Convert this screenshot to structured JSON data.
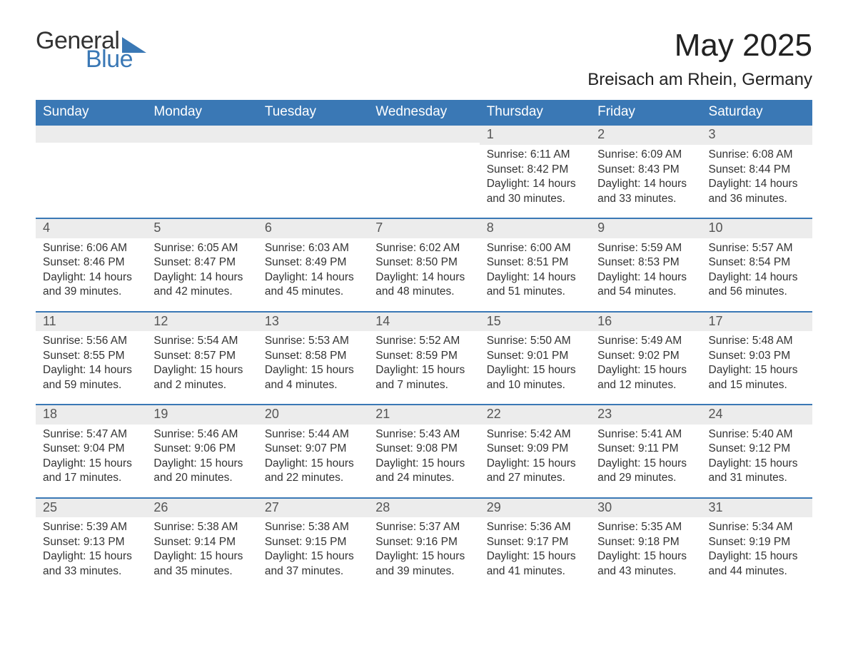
{
  "brand": {
    "word1": "General",
    "word2": "Blue",
    "accent_color": "#3a78b5"
  },
  "title": "May 2025",
  "location": "Breisach am Rhein, Germany",
  "calendar": {
    "type": "table",
    "columns": [
      "Sunday",
      "Monday",
      "Tuesday",
      "Wednesday",
      "Thursday",
      "Friday",
      "Saturday"
    ],
    "colors": {
      "header_bg": "#3a78b5",
      "header_text": "#ffffff",
      "daynum_bg": "#ececec",
      "daynum_text": "#555555",
      "body_text": "#333333",
      "week_divider": "#3a78b5",
      "page_bg": "#ffffff"
    },
    "typography": {
      "title_fontsize_pt": 33,
      "location_fontsize_pt": 18,
      "header_fontsize_pt": 14,
      "daynum_fontsize_pt": 13,
      "body_fontsize_pt": 11.5,
      "font_family": "Arial"
    },
    "weeks": [
      [
        {
          "empty": true
        },
        {
          "empty": true
        },
        {
          "empty": true
        },
        {
          "empty": true
        },
        {
          "day": "1",
          "sunrise": "Sunrise: 6:11 AM",
          "sunset": "Sunset: 8:42 PM",
          "daylight": "Daylight: 14 hours and 30 minutes."
        },
        {
          "day": "2",
          "sunrise": "Sunrise: 6:09 AM",
          "sunset": "Sunset: 8:43 PM",
          "daylight": "Daylight: 14 hours and 33 minutes."
        },
        {
          "day": "3",
          "sunrise": "Sunrise: 6:08 AM",
          "sunset": "Sunset: 8:44 PM",
          "daylight": "Daylight: 14 hours and 36 minutes."
        }
      ],
      [
        {
          "day": "4",
          "sunrise": "Sunrise: 6:06 AM",
          "sunset": "Sunset: 8:46 PM",
          "daylight": "Daylight: 14 hours and 39 minutes."
        },
        {
          "day": "5",
          "sunrise": "Sunrise: 6:05 AM",
          "sunset": "Sunset: 8:47 PM",
          "daylight": "Daylight: 14 hours and 42 minutes."
        },
        {
          "day": "6",
          "sunrise": "Sunrise: 6:03 AM",
          "sunset": "Sunset: 8:49 PM",
          "daylight": "Daylight: 14 hours and 45 minutes."
        },
        {
          "day": "7",
          "sunrise": "Sunrise: 6:02 AM",
          "sunset": "Sunset: 8:50 PM",
          "daylight": "Daylight: 14 hours and 48 minutes."
        },
        {
          "day": "8",
          "sunrise": "Sunrise: 6:00 AM",
          "sunset": "Sunset: 8:51 PM",
          "daylight": "Daylight: 14 hours and 51 minutes."
        },
        {
          "day": "9",
          "sunrise": "Sunrise: 5:59 AM",
          "sunset": "Sunset: 8:53 PM",
          "daylight": "Daylight: 14 hours and 54 minutes."
        },
        {
          "day": "10",
          "sunrise": "Sunrise: 5:57 AM",
          "sunset": "Sunset: 8:54 PM",
          "daylight": "Daylight: 14 hours and 56 minutes."
        }
      ],
      [
        {
          "day": "11",
          "sunrise": "Sunrise: 5:56 AM",
          "sunset": "Sunset: 8:55 PM",
          "daylight": "Daylight: 14 hours and 59 minutes."
        },
        {
          "day": "12",
          "sunrise": "Sunrise: 5:54 AM",
          "sunset": "Sunset: 8:57 PM",
          "daylight": "Daylight: 15 hours and 2 minutes."
        },
        {
          "day": "13",
          "sunrise": "Sunrise: 5:53 AM",
          "sunset": "Sunset: 8:58 PM",
          "daylight": "Daylight: 15 hours and 4 minutes."
        },
        {
          "day": "14",
          "sunrise": "Sunrise: 5:52 AM",
          "sunset": "Sunset: 8:59 PM",
          "daylight": "Daylight: 15 hours and 7 minutes."
        },
        {
          "day": "15",
          "sunrise": "Sunrise: 5:50 AM",
          "sunset": "Sunset: 9:01 PM",
          "daylight": "Daylight: 15 hours and 10 minutes."
        },
        {
          "day": "16",
          "sunrise": "Sunrise: 5:49 AM",
          "sunset": "Sunset: 9:02 PM",
          "daylight": "Daylight: 15 hours and 12 minutes."
        },
        {
          "day": "17",
          "sunrise": "Sunrise: 5:48 AM",
          "sunset": "Sunset: 9:03 PM",
          "daylight": "Daylight: 15 hours and 15 minutes."
        }
      ],
      [
        {
          "day": "18",
          "sunrise": "Sunrise: 5:47 AM",
          "sunset": "Sunset: 9:04 PM",
          "daylight": "Daylight: 15 hours and 17 minutes."
        },
        {
          "day": "19",
          "sunrise": "Sunrise: 5:46 AM",
          "sunset": "Sunset: 9:06 PM",
          "daylight": "Daylight: 15 hours and 20 minutes."
        },
        {
          "day": "20",
          "sunrise": "Sunrise: 5:44 AM",
          "sunset": "Sunset: 9:07 PM",
          "daylight": "Daylight: 15 hours and 22 minutes."
        },
        {
          "day": "21",
          "sunrise": "Sunrise: 5:43 AM",
          "sunset": "Sunset: 9:08 PM",
          "daylight": "Daylight: 15 hours and 24 minutes."
        },
        {
          "day": "22",
          "sunrise": "Sunrise: 5:42 AM",
          "sunset": "Sunset: 9:09 PM",
          "daylight": "Daylight: 15 hours and 27 minutes."
        },
        {
          "day": "23",
          "sunrise": "Sunrise: 5:41 AM",
          "sunset": "Sunset: 9:11 PM",
          "daylight": "Daylight: 15 hours and 29 minutes."
        },
        {
          "day": "24",
          "sunrise": "Sunrise: 5:40 AM",
          "sunset": "Sunset: 9:12 PM",
          "daylight": "Daylight: 15 hours and 31 minutes."
        }
      ],
      [
        {
          "day": "25",
          "sunrise": "Sunrise: 5:39 AM",
          "sunset": "Sunset: 9:13 PM",
          "daylight": "Daylight: 15 hours and 33 minutes."
        },
        {
          "day": "26",
          "sunrise": "Sunrise: 5:38 AM",
          "sunset": "Sunset: 9:14 PM",
          "daylight": "Daylight: 15 hours and 35 minutes."
        },
        {
          "day": "27",
          "sunrise": "Sunrise: 5:38 AM",
          "sunset": "Sunset: 9:15 PM",
          "daylight": "Daylight: 15 hours and 37 minutes."
        },
        {
          "day": "28",
          "sunrise": "Sunrise: 5:37 AM",
          "sunset": "Sunset: 9:16 PM",
          "daylight": "Daylight: 15 hours and 39 minutes."
        },
        {
          "day": "29",
          "sunrise": "Sunrise: 5:36 AM",
          "sunset": "Sunset: 9:17 PM",
          "daylight": "Daylight: 15 hours and 41 minutes."
        },
        {
          "day": "30",
          "sunrise": "Sunrise: 5:35 AM",
          "sunset": "Sunset: 9:18 PM",
          "daylight": "Daylight: 15 hours and 43 minutes."
        },
        {
          "day": "31",
          "sunrise": "Sunrise: 5:34 AM",
          "sunset": "Sunset: 9:19 PM",
          "daylight": "Daylight: 15 hours and 44 minutes."
        }
      ]
    ]
  }
}
